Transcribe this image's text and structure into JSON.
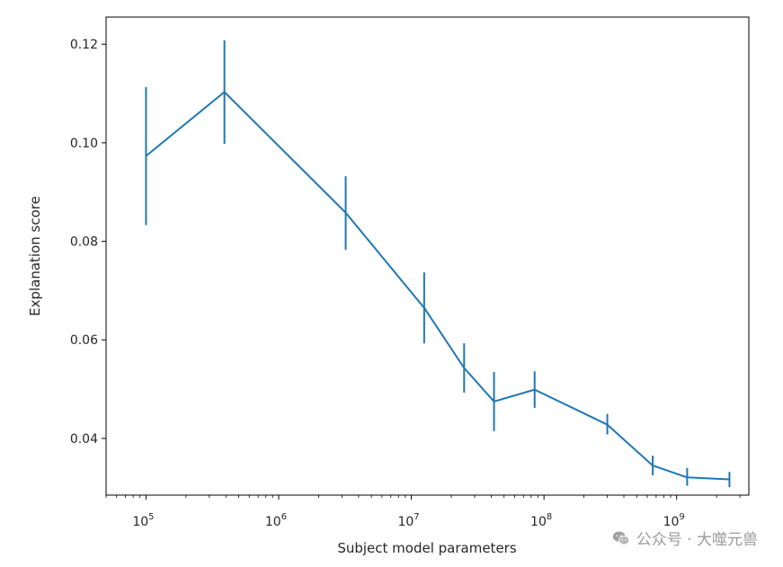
{
  "chart_data": {
    "type": "line",
    "title": "",
    "xlabel": "Subject model parameters",
    "ylabel": "Explanation score",
    "xscale": "log",
    "xlim": [
      50000,
      3500000000
    ],
    "ylim": [
      0.0285,
      0.1255
    ],
    "x_ticks": [
      {
        "value": 100000,
        "base": "10",
        "exp": "5"
      },
      {
        "value": 1000000,
        "base": "10",
        "exp": "6"
      },
      {
        "value": 10000000,
        "base": "10",
        "exp": "7"
      },
      {
        "value": 100000000,
        "base": "10",
        "exp": "8"
      },
      {
        "value": 1000000000,
        "base": "10",
        "exp": "9"
      }
    ],
    "y_ticks": [
      {
        "value": 0.04,
        "label": "0.04"
      },
      {
        "value": 0.06,
        "label": "0.06"
      },
      {
        "value": 0.08,
        "label": "0.08"
      },
      {
        "value": 0.1,
        "label": "0.10"
      },
      {
        "value": 0.12,
        "label": "0.12"
      }
    ],
    "series": [
      {
        "name": "Explanation score",
        "color": "#1f77b4",
        "x": [
          100000,
          390000,
          3200000,
          12500000,
          25000000,
          42000000,
          85000000,
          300000000,
          660000000,
          1200000000,
          2500000000
        ],
        "y": [
          0.0973,
          0.1103,
          0.0858,
          0.0665,
          0.0543,
          0.0475,
          0.0499,
          0.0428,
          0.0345,
          0.0321,
          0.0317
        ],
        "err_low": [
          0.0833,
          0.0998,
          0.0783,
          0.0593,
          0.0493,
          0.0415,
          0.0462,
          0.0408,
          0.0325,
          0.0304,
          0.0301
        ],
        "err_high": [
          0.1113,
          0.1208,
          0.0932,
          0.0737,
          0.0593,
          0.0535,
          0.0536,
          0.045,
          0.0365,
          0.034,
          0.0332
        ]
      }
    ]
  },
  "watermark": {
    "text": "公众号 · 大噬元兽",
    "icon": "wechat-icon"
  }
}
